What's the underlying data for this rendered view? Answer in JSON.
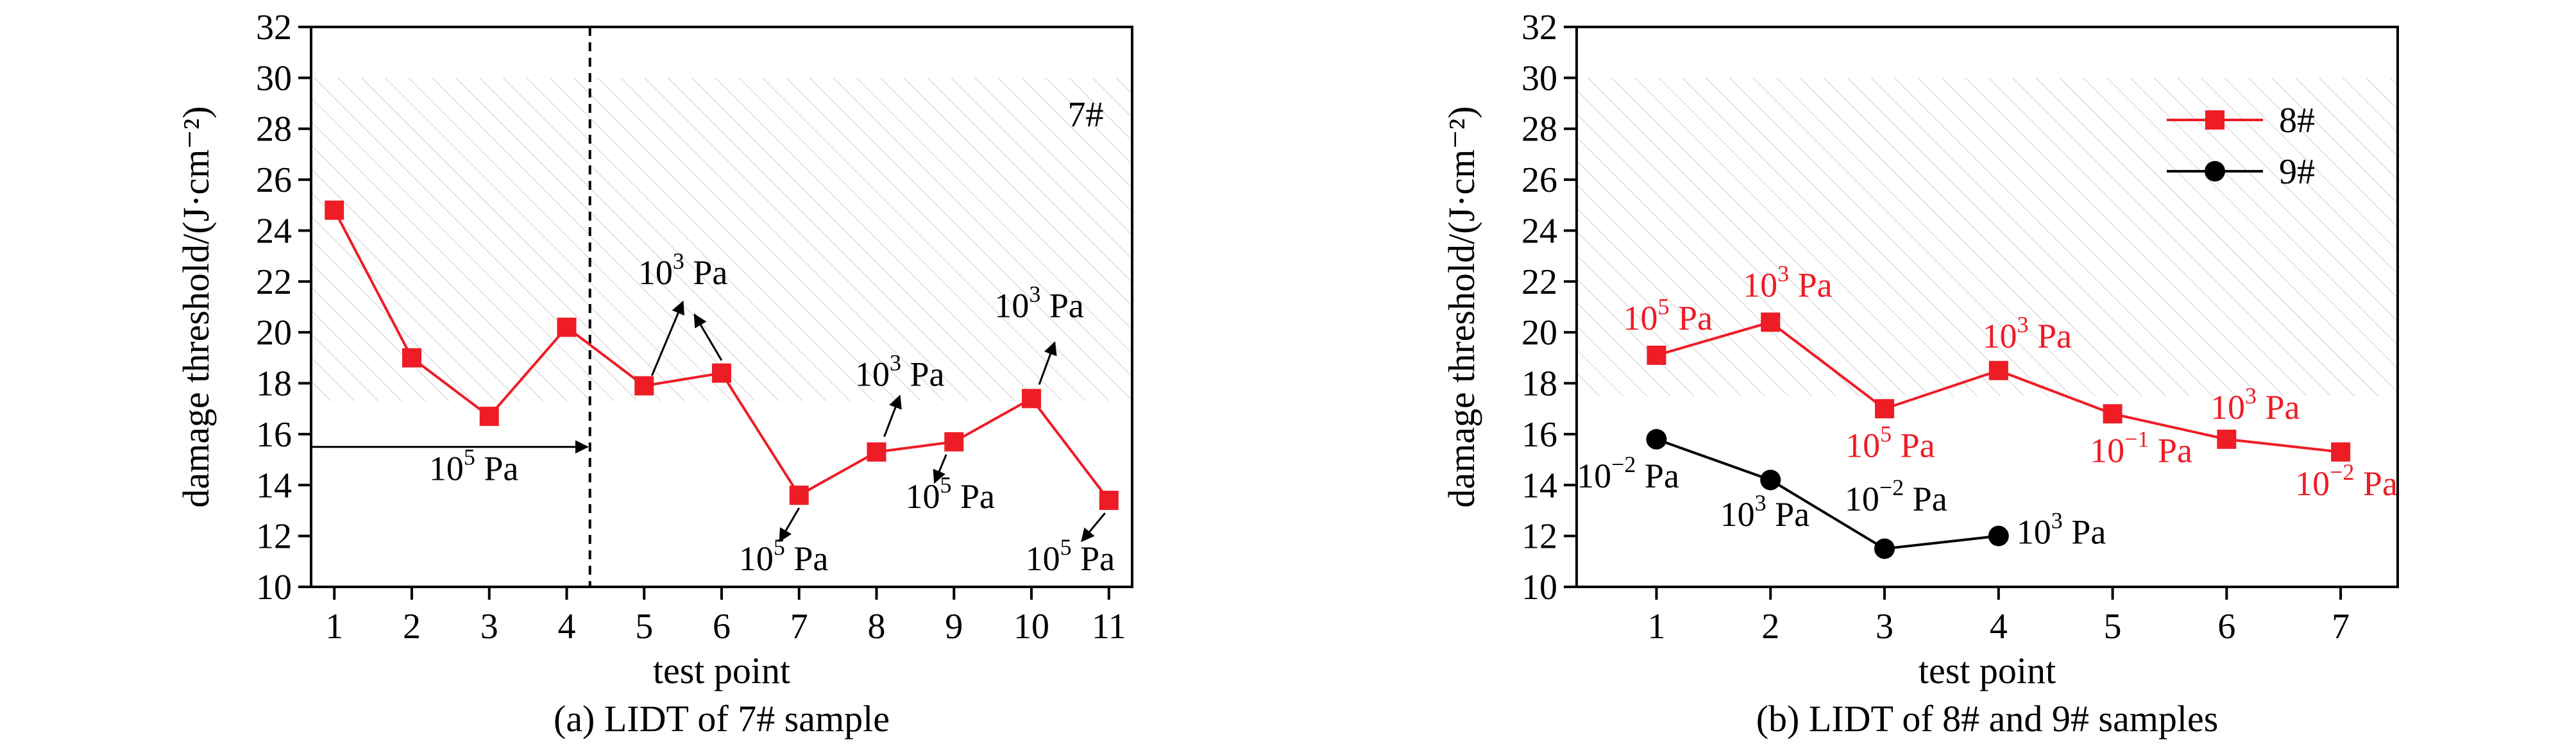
{
  "chart_data": [
    {
      "type": "line",
      "caption": "(a) LIDT of 7# sample",
      "xlabel": "test point",
      "ylabel": "damage threshold/(J·cm⁻²)",
      "xlim": [
        0.7,
        11.3
      ],
      "ylim": [
        10,
        32
      ],
      "xticks": [
        1,
        2,
        3,
        4,
        5,
        6,
        7,
        8,
        9,
        10,
        11
      ],
      "yticks": [
        10,
        12,
        14,
        16,
        18,
        20,
        22,
        24,
        26,
        28,
        30,
        32
      ],
      "shaded_band": [
        17.3,
        30
      ],
      "vline_x": 4.3,
      "panel_label": "7#",
      "color": "#ee1c25",
      "series": [
        {
          "name": "",
          "x": [
            1,
            2,
            3,
            4,
            5,
            6,
            7,
            8,
            9,
            10,
            11
          ],
          "values": [
            24.8,
            19.0,
            16.7,
            20.2,
            17.9,
            18.4,
            13.6,
            15.3,
            15.7,
            17.4,
            13.4
          ]
        }
      ],
      "annotations": [
        {
          "base": "10",
          "exp": "5",
          "unit": " Pa",
          "x": 2.8,
          "y": 14.2
        },
        {
          "base": "10",
          "exp": "3",
          "unit": " Pa",
          "x": 5.5,
          "y": 21.9
        },
        {
          "base": "10",
          "exp": "5",
          "unit": " Pa",
          "x": 6.8,
          "y": 10.65
        },
        {
          "base": "10",
          "exp": "3",
          "unit": " Pa",
          "x": 8.3,
          "y": 17.9
        },
        {
          "base": "10",
          "exp": "5",
          "unit": " Pa",
          "x": 8.95,
          "y": 13.1
        },
        {
          "base": "10",
          "exp": "3",
          "unit": " Pa",
          "x": 10.1,
          "y": 20.6
        },
        {
          "base": "10",
          "exp": "5",
          "unit": " Pa",
          "x": 10.5,
          "y": 10.65
        }
      ]
    },
    {
      "type": "line",
      "caption": "(b) LIDT of 8# and 9# samples",
      "xlabel": "test point",
      "ylabel": "damage threshold/(J·cm⁻²)",
      "xlim": [
        0.3,
        7.5
      ],
      "ylim": [
        10,
        32
      ],
      "xticks": [
        1,
        2,
        3,
        4,
        5,
        6,
        7
      ],
      "yticks": [
        10,
        12,
        14,
        16,
        18,
        20,
        22,
        24,
        26,
        28,
        30,
        32
      ],
      "shaded_band": [
        17.5,
        30
      ],
      "legend_position": "top-right",
      "series": [
        {
          "name": "8#",
          "marker": "square",
          "color": "#ee1c25",
          "x": [
            1,
            2,
            3,
            4,
            5,
            6,
            7
          ],
          "values": [
            19.1,
            20.4,
            17.0,
            18.5,
            16.8,
            15.8,
            15.3
          ]
        },
        {
          "name": "9#",
          "marker": "circle",
          "color": "#000000",
          "x": [
            1,
            2,
            3,
            4
          ],
          "values": [
            15.8,
            14.2,
            11.5,
            12.0
          ]
        }
      ],
      "annotations": [
        {
          "base": "10",
          "exp": "5",
          "unit": " Pa",
          "x": 1.1,
          "y": 20.1,
          "color": "#ee1c25"
        },
        {
          "base": "10",
          "exp": "3",
          "unit": " Pa",
          "x": 2.15,
          "y": 21.4,
          "color": "#ee1c25"
        },
        {
          "base": "10",
          "exp": "5",
          "unit": " Pa",
          "x": 3.05,
          "y": 15.1,
          "color": "#ee1c25"
        },
        {
          "base": "10",
          "exp": "3",
          "unit": " Pa",
          "x": 4.25,
          "y": 19.4,
          "color": "#ee1c25"
        },
        {
          "base": "10",
          "exp": "−1",
          "unit": " Pa",
          "x": 5.25,
          "y": 14.9,
          "color": "#ee1c25"
        },
        {
          "base": "10",
          "exp": "3",
          "unit": " Pa",
          "x": 6.25,
          "y": 16.6,
          "color": "#ee1c25"
        },
        {
          "base": "10",
          "exp": "−2",
          "unit": " Pa",
          "x": 7.05,
          "y": 13.6,
          "color": "#ee1c25"
        },
        {
          "base": "10",
          "exp": "−2",
          "unit": " Pa",
          "x": 0.75,
          "y": 13.9,
          "color": "#000000"
        },
        {
          "base": "10",
          "exp": "3",
          "unit": " Pa",
          "x": 1.95,
          "y": 12.4,
          "color": "#000000"
        },
        {
          "base": "10",
          "exp": "−2",
          "unit": " Pa",
          "x": 3.1,
          "y": 13.0,
          "color": "#000000"
        },
        {
          "base": "10",
          "exp": "3",
          "unit": " Pa",
          "x": 4.55,
          "y": 11.7,
          "color": "#000000"
        }
      ]
    }
  ]
}
